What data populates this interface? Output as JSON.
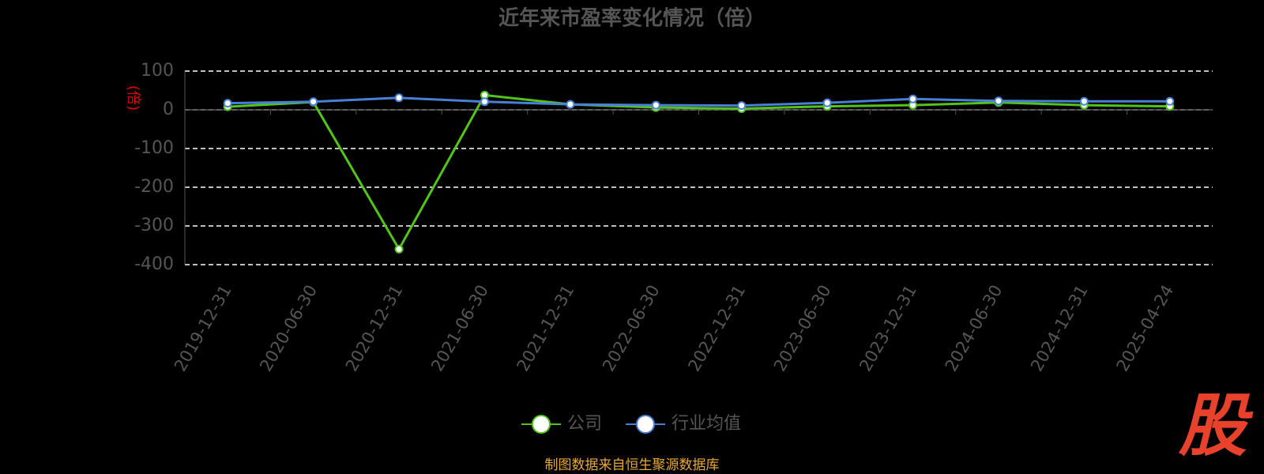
{
  "chart_data": {
    "type": "line",
    "title": "近年来市盈率变化情况（倍）",
    "y_label": "(倍)",
    "categories": [
      "2019-12-31",
      "2020-06-30",
      "2020-12-31",
      "2021-06-30",
      "2021-12-31",
      "2022-06-30",
      "2022-12-31",
      "2023-06-30",
      "2023-12-31",
      "2024-06-30",
      "2024-12-31",
      "2025-04-24"
    ],
    "series": [
      {
        "name": "公司",
        "color": "#52c41a",
        "values": [
          8,
          20,
          -360,
          38,
          14,
          6,
          3,
          9,
          12,
          19,
          12,
          9
        ]
      },
      {
        "name": "行业均值",
        "color": "#4a7fd6",
        "values": [
          17,
          21,
          31,
          21,
          14,
          12,
          11,
          18,
          28,
          23,
          22,
          22
        ]
      }
    ],
    "ylim": [
      -400,
      100
    ],
    "yticks": [
      -400,
      -300,
      -200,
      -100,
      0,
      100
    ],
    "grid": true,
    "legend": "bottom",
    "source": "制图数据来自恒生聚源数据库",
    "logo": "股"
  }
}
